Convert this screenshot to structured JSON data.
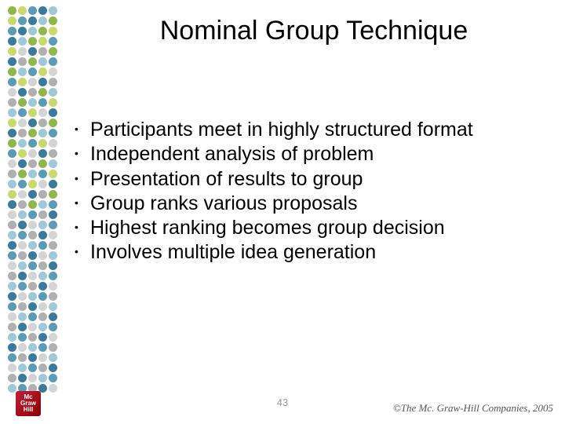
{
  "title": "Nominal Group Technique",
  "bullets": [
    "Participants meet in highly structured format",
    "Independent analysis of problem",
    "Presentation of results to group",
    "Group ranks various proposals",
    "Highest ranking becomes group decision",
    "Involves multiple idea generation"
  ],
  "page_number": "43",
  "copyright": "©The Mc. Graw-Hill Companies, 2005",
  "logo_text_top": "Mc",
  "logo_text_mid": "Graw",
  "logo_text_bot": "Hill",
  "logo_subtitle": "",
  "dot_grid": {
    "rows": 38,
    "cols": 5,
    "palette": [
      "#8fb84a",
      "#c9d96a",
      "#5a9bb8",
      "#3a7a9c",
      "#9fc9d9",
      "#d4d4d4",
      "#b0b0b0"
    ],
    "background": "#ffffff"
  },
  "title_fontsize": 34,
  "body_fontsize": 25,
  "text_color": "#000000"
}
